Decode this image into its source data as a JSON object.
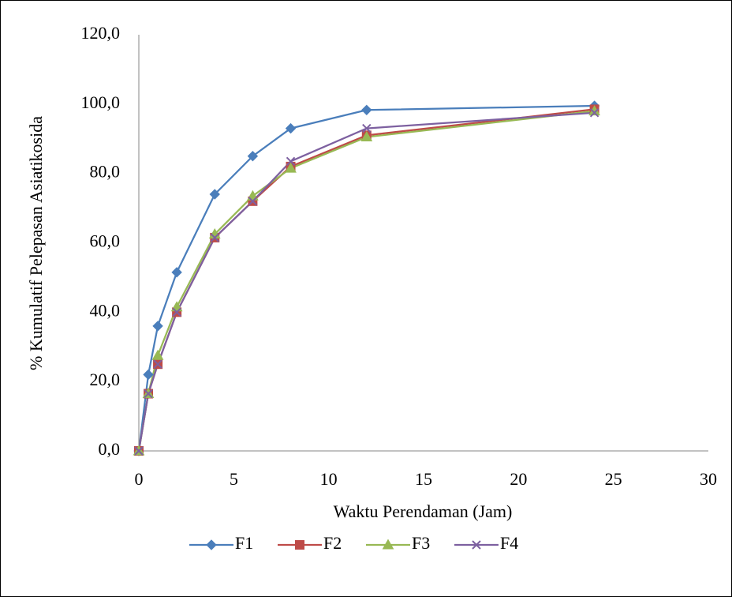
{
  "chart_data": {
    "type": "line",
    "x_label": "Waktu Perendaman (Jam)",
    "y_label": "% Kumulatif Pelepasan Asiatikosida",
    "x": [
      0,
      0.5,
      1,
      2,
      4,
      6,
      8,
      12,
      24
    ],
    "series": [
      {
        "name": "F1",
        "color": "#4a7ebb",
        "marker": "diamond",
        "values": [
          0,
          22,
          36,
          51.5,
          74,
          85,
          93,
          98.3,
          99.5
        ]
      },
      {
        "name": "F2",
        "color": "#be4b48",
        "marker": "square",
        "values": [
          0,
          16.5,
          25,
          40,
          61.5,
          72,
          82,
          91,
          98.5
        ]
      },
      {
        "name": "F3",
        "color": "#98b954",
        "marker": "triangle",
        "values": [
          0,
          16.5,
          27.5,
          41.5,
          62.5,
          73.5,
          81.5,
          90.5,
          98
        ]
      },
      {
        "name": "F4",
        "color": "#7d60a0",
        "marker": "x",
        "values": [
          0,
          16.5,
          25,
          40,
          61.5,
          72,
          83.5,
          93,
          97.5
        ]
      }
    ],
    "xlim": [
      0,
      30
    ],
    "xticks": [
      0,
      5,
      10,
      15,
      20,
      25,
      30
    ],
    "ylim": [
      0,
      120
    ],
    "yticks": [
      {
        "value": 0,
        "label": "0,0"
      },
      {
        "value": 20,
        "label": "20,0"
      },
      {
        "value": 40,
        "label": "40,0"
      },
      {
        "value": 60,
        "label": "60,0"
      },
      {
        "value": 80,
        "label": "80,0"
      },
      {
        "value": 100,
        "label": "100,0"
      },
      {
        "value": 120,
        "label": "120,0"
      }
    ],
    "grid": false,
    "legend": "bottom"
  }
}
